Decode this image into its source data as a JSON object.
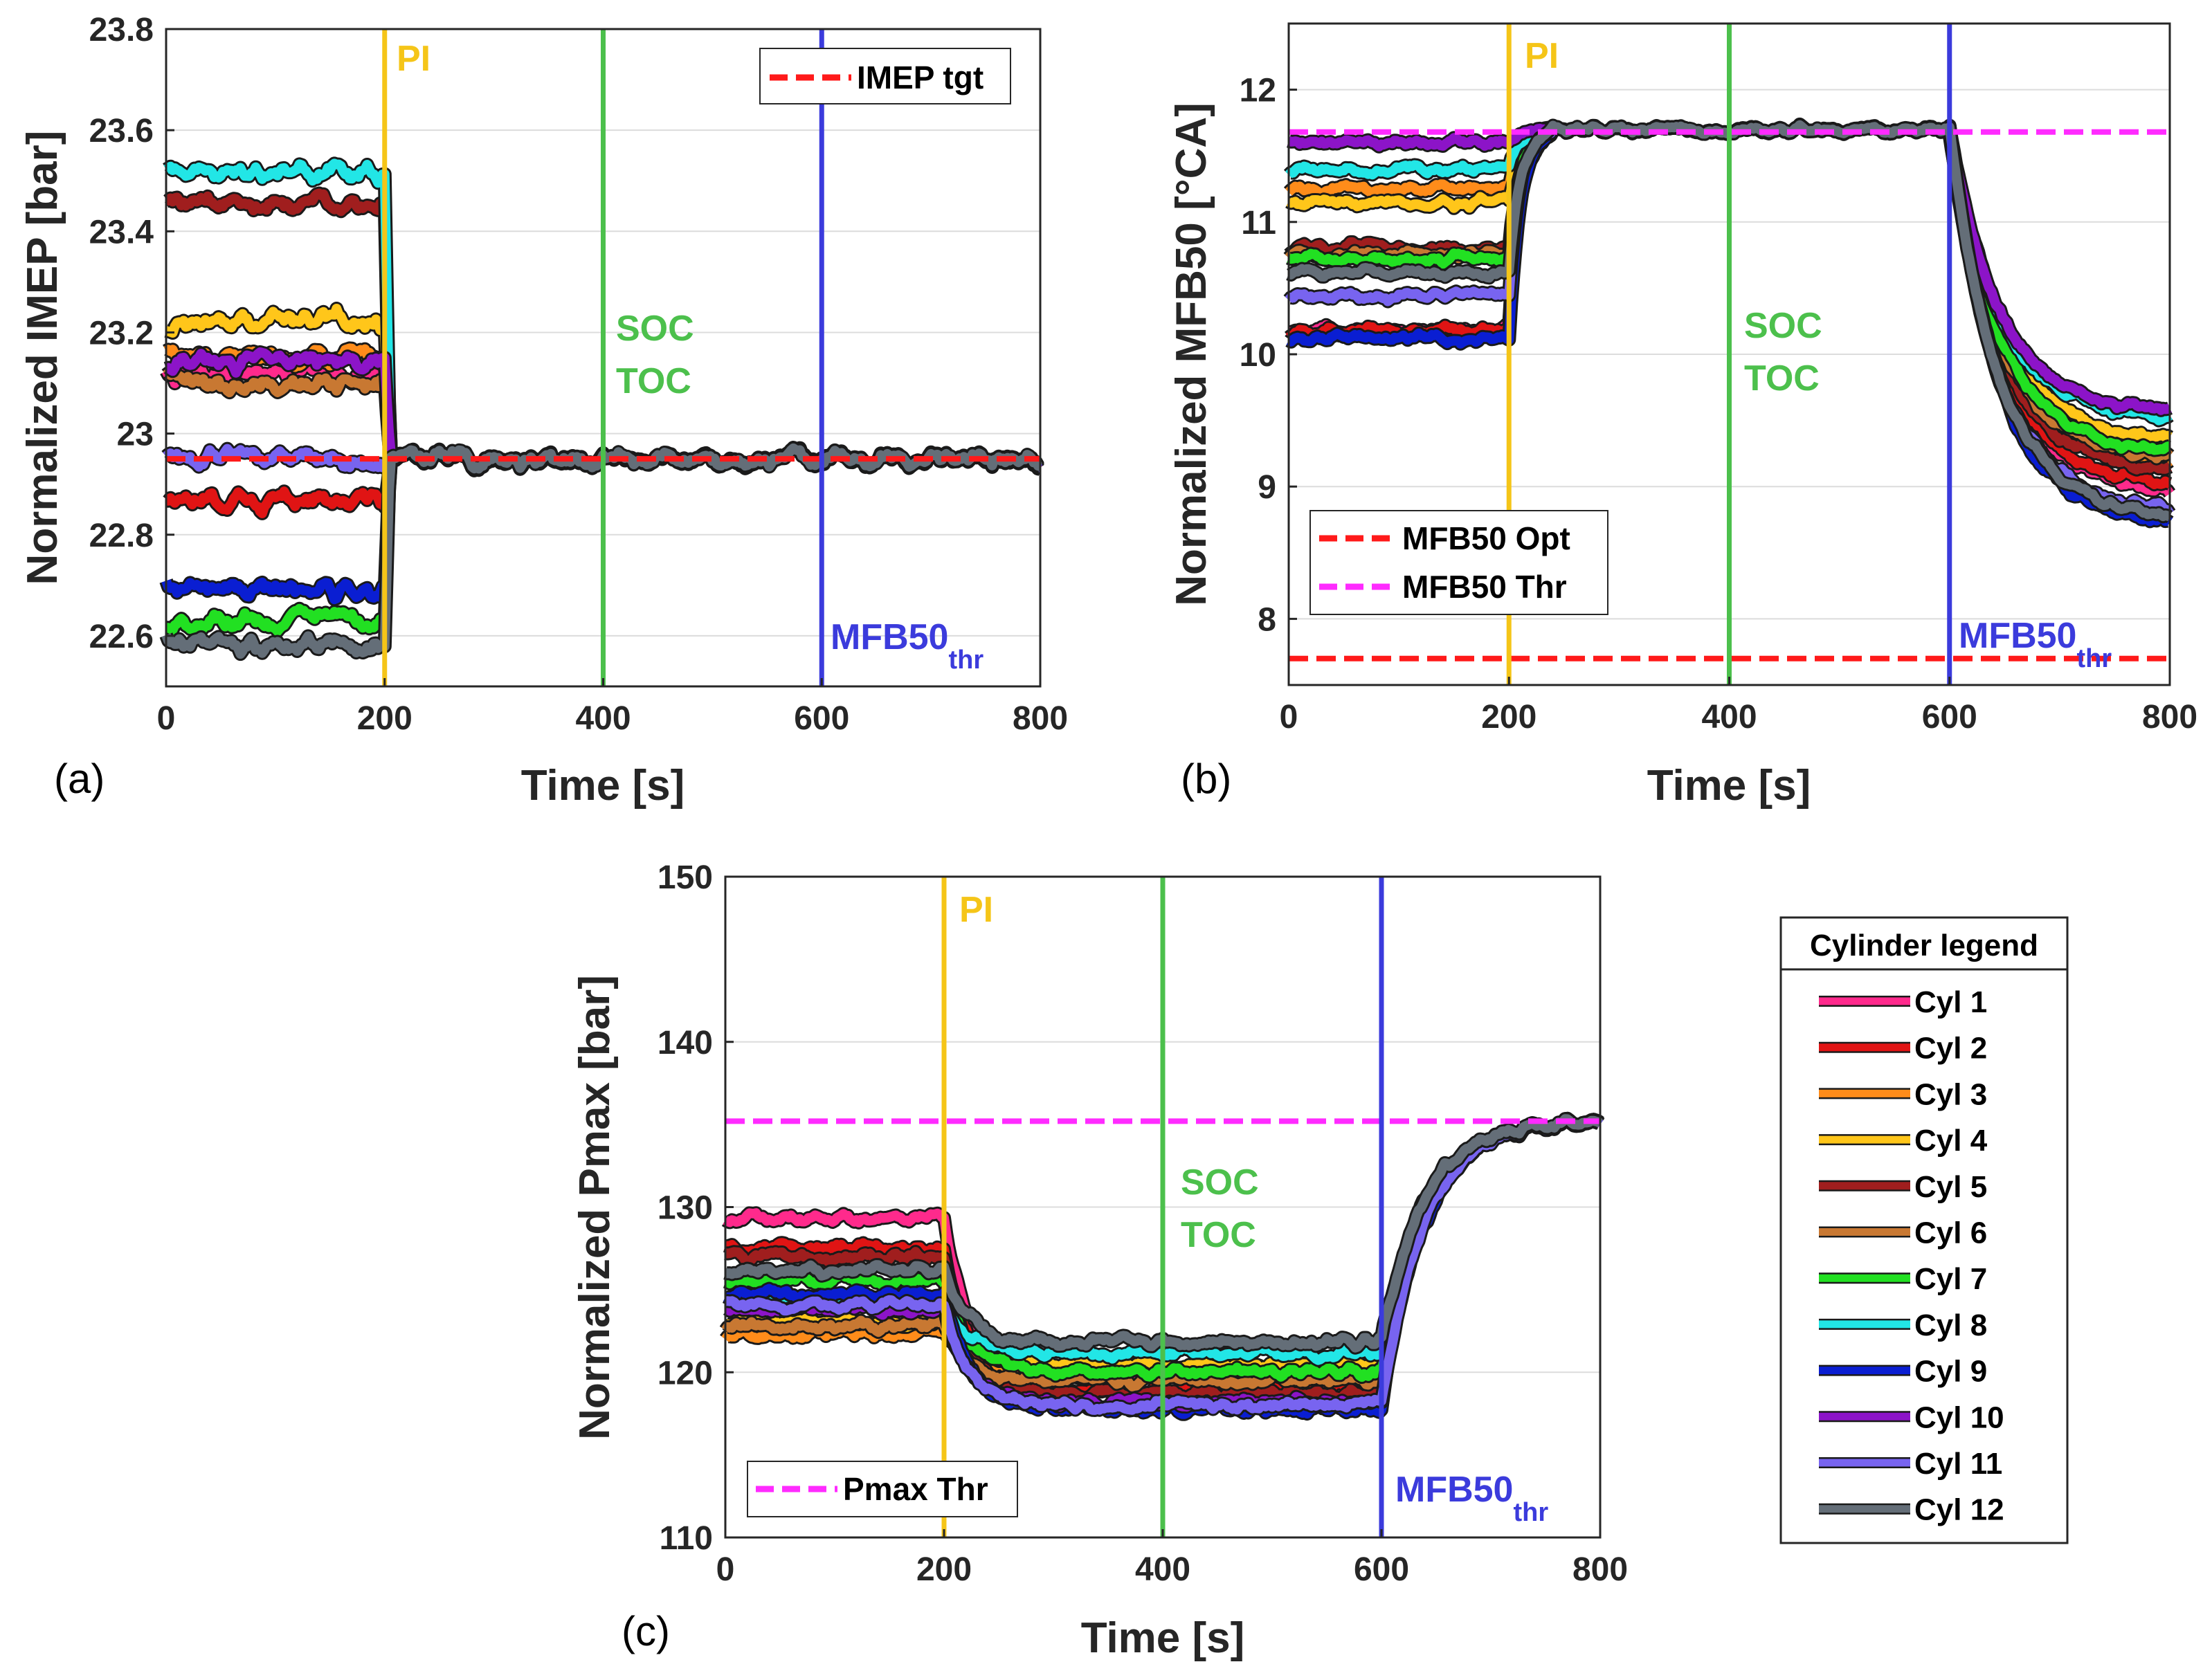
{
  "chart_data": [
    {
      "type": "line",
      "panel_label": "(a)",
      "xlabel": "Time [s]",
      "ylabel": "Normalized IMEP [bar]",
      "xlim": [
        0,
        800
      ],
      "ylim": [
        22.5,
        23.8
      ],
      "xticks": [
        0,
        200,
        400,
        600,
        800
      ],
      "yticks": [
        22.6,
        22.8,
        23,
        23.2,
        23.4,
        23.6,
        23.8
      ],
      "ytick_labels": [
        "22.6",
        "22.8",
        "23",
        "23.2",
        "23.4",
        "23.6",
        "23.8"
      ],
      "grid": true,
      "events": [
        {
          "x": 200,
          "label": "PI",
          "color": "#f5c518"
        },
        {
          "x": 400,
          "label": "SOC",
          "label2": "TOC",
          "color": "#4cc04c"
        },
        {
          "x": 600,
          "label": "MFB50",
          "sub": "thr",
          "color": "#3b3bdc"
        }
      ],
      "legend": [
        {
          "name": "IMEP tgt",
          "color": "#ff1a1a",
          "style": "dashed"
        }
      ],
      "reference_lines": [
        {
          "name": "IMEP tgt",
          "y": 22.95,
          "color": "#ff1a1a"
        }
      ],
      "series": [
        {
          "name": "Cyl 1",
          "pre": 23.12,
          "post": 22.95
        },
        {
          "name": "Cyl 2",
          "pre": 22.87,
          "post": 22.95
        },
        {
          "name": "Cyl 3",
          "pre": 23.15,
          "post": 22.95
        },
        {
          "name": "Cyl 4",
          "pre": 23.22,
          "post": 22.95
        },
        {
          "name": "Cyl 5",
          "pre": 23.46,
          "post": 22.95
        },
        {
          "name": "Cyl 6",
          "pre": 23.1,
          "post": 22.95
        },
        {
          "name": "Cyl 7",
          "pre": 22.63,
          "post": 22.95
        },
        {
          "name": "Cyl 8",
          "pre": 23.52,
          "post": 22.95
        },
        {
          "name": "Cyl 9",
          "pre": 22.69,
          "post": 22.95
        },
        {
          "name": "Cyl 10",
          "pre": 23.14,
          "post": 22.95
        },
        {
          "name": "Cyl 11",
          "pre": 22.95,
          "post": 22.95
        },
        {
          "name": "Cyl 12",
          "pre": 22.58,
          "post": 22.95
        }
      ]
    },
    {
      "type": "line",
      "panel_label": "(b)",
      "xlabel": "Time [s]",
      "ylabel": "Normalized MFB50 [°CA]",
      "xlim": [
        0,
        800
      ],
      "ylim": [
        7.5,
        12.5
      ],
      "xticks": [
        0,
        200,
        400,
        600,
        800
      ],
      "yticks": [
        8,
        9,
        10,
        11,
        12
      ],
      "ytick_labels": [
        "8",
        "9",
        "10",
        "11",
        "12"
      ],
      "grid": true,
      "events": [
        {
          "x": 200,
          "label": "PI",
          "color": "#f5c518"
        },
        {
          "x": 400,
          "label": "SOC",
          "label2": "TOC",
          "color": "#4cc04c"
        },
        {
          "x": 600,
          "label": "MFB50",
          "sub": "thr",
          "color": "#3b3bdc"
        }
      ],
      "legend": [
        {
          "name": "MFB50 Opt",
          "color": "#ff1a1a",
          "style": "dashed"
        },
        {
          "name": "MFB50 Thr",
          "color": "#ff2bff",
          "style": "dashed"
        }
      ],
      "reference_lines": [
        {
          "name": "MFB50 Opt",
          "y": 7.7,
          "color": "#ff1a1a"
        },
        {
          "name": "MFB50 Thr",
          "y": 11.68,
          "color": "#ff2bff"
        }
      ],
      "series": [
        {
          "name": "Cyl 1",
          "pre": 10.18,
          "mid": 11.7,
          "end": 8.95
        },
        {
          "name": "Cyl 2",
          "pre": 10.18,
          "mid": 11.7,
          "end": 9.0
        },
        {
          "name": "Cyl 3",
          "pre": 11.25,
          "mid": 11.7,
          "end": 9.15
        },
        {
          "name": "Cyl 4",
          "pre": 11.15,
          "mid": 11.7,
          "end": 9.35
        },
        {
          "name": "Cyl 5",
          "pre": 10.8,
          "mid": 11.7,
          "end": 9.1
        },
        {
          "name": "Cyl 6",
          "pre": 10.75,
          "mid": 11.7,
          "end": 9.2
        },
        {
          "name": "Cyl 7",
          "pre": 10.72,
          "mid": 11.7,
          "end": 9.25
        },
        {
          "name": "Cyl 8",
          "pre": 11.4,
          "mid": 11.7,
          "end": 9.5
        },
        {
          "name": "Cyl 9",
          "pre": 10.12,
          "mid": 11.7,
          "end": 8.7
        },
        {
          "name": "Cyl 10",
          "pre": 11.6,
          "mid": 11.7,
          "end": 9.55
        },
        {
          "name": "Cyl 11",
          "pre": 10.45,
          "mid": 11.7,
          "end": 8.8
        },
        {
          "name": "Cyl 12",
          "pre": 10.62,
          "mid": 11.7,
          "end": 8.75
        }
      ]
    },
    {
      "type": "line",
      "panel_label": "(c)",
      "xlabel": "Time [s]",
      "ylabel": "Normalized Pmax [bar]",
      "xlim": [
        0,
        800
      ],
      "ylim": [
        110,
        150
      ],
      "xticks": [
        0,
        200,
        400,
        600,
        800
      ],
      "yticks": [
        110,
        120,
        130,
        140,
        150
      ],
      "ytick_labels": [
        "110",
        "120",
        "130",
        "140",
        "150"
      ],
      "grid": true,
      "events": [
        {
          "x": 200,
          "label": "PI",
          "color": "#f5c518"
        },
        {
          "x": 400,
          "label": "SOC",
          "label2": "TOC",
          "color": "#4cc04c"
        },
        {
          "x": 600,
          "label": "MFB50",
          "sub": "thr",
          "color": "#3b3bdc"
        }
      ],
      "legend": [
        {
          "name": "Pmax Thr",
          "color": "#ff2bff",
          "style": "dashed"
        }
      ],
      "reference_lines": [
        {
          "name": "Pmax Thr",
          "y": 135.2,
          "color": "#ff2bff"
        }
      ],
      "series": [
        {
          "name": "Cyl 1",
          "pre": 129.3,
          "mid": 119.8,
          "end": 135.2
        },
        {
          "name": "Cyl 2",
          "pre": 127.5,
          "mid": 119.0,
          "end": 135.2
        },
        {
          "name": "Cyl 3",
          "pre": 122.3,
          "mid": 120.2,
          "end": 135.2
        },
        {
          "name": "Cyl 4",
          "pre": 123.0,
          "mid": 120.5,
          "end": 135.2
        },
        {
          "name": "Cyl 5",
          "pre": 127.0,
          "mid": 118.7,
          "end": 135.2
        },
        {
          "name": "Cyl 6",
          "pre": 122.8,
          "mid": 119.5,
          "end": 135.2
        },
        {
          "name": "Cyl 7",
          "pre": 125.5,
          "mid": 120.0,
          "end": 135.2
        },
        {
          "name": "Cyl 8",
          "pre": 124.2,
          "mid": 121.2,
          "end": 135.2
        },
        {
          "name": "Cyl 9",
          "pre": 124.8,
          "mid": 117.8,
          "end": 135.2
        },
        {
          "name": "Cyl 10",
          "pre": 123.8,
          "mid": 118.2,
          "end": 135.2
        },
        {
          "name": "Cyl 11",
          "pre": 124.0,
          "mid": 118.0,
          "end": 135.2
        },
        {
          "name": "Cyl 12",
          "pre": 126.2,
          "mid": 121.8,
          "end": 135.2
        }
      ]
    }
  ],
  "cylinder_legend": {
    "title": "Cylinder legend",
    "items": [
      {
        "name": "Cyl 1",
        "color": "#ff2a8c"
      },
      {
        "name": "Cyl 2",
        "color": "#e01414"
      },
      {
        "name": "Cyl 3",
        "color": "#ff8c1a"
      },
      {
        "name": "Cyl 4",
        "color": "#ffc61a"
      },
      {
        "name": "Cyl 5",
        "color": "#a01e1e"
      },
      {
        "name": "Cyl 6",
        "color": "#c87832"
      },
      {
        "name": "Cyl 7",
        "color": "#22e022"
      },
      {
        "name": "Cyl 8",
        "color": "#22e6e6"
      },
      {
        "name": "Cyl 9",
        "color": "#0a1ed2"
      },
      {
        "name": "Cyl 10",
        "color": "#8c14c8"
      },
      {
        "name": "Cyl 11",
        "color": "#7864f0"
      },
      {
        "name": "Cyl 12",
        "color": "#646e78"
      }
    ]
  }
}
